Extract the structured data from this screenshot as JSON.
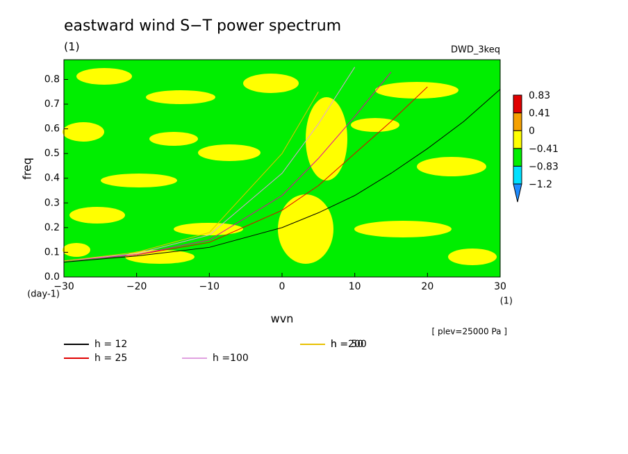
{
  "chart_data": {
    "type": "line",
    "title": "eastward wind S−T power spectrum",
    "subtitle": "(1)",
    "model_label": "DWD_3keq",
    "level_label": "[ plev=25000 Pa ]",
    "x_label": "wvn",
    "y_label": "freq",
    "x_unit": "(1)",
    "y_unit": "(day-1)",
    "xlim": [
      -30,
      30
    ],
    "xticks": [
      {
        "value": -30,
        "label": "−30"
      },
      {
        "value": -20,
        "label": "−20"
      },
      {
        "value": -10,
        "label": "−10"
      },
      0,
      10,
      20,
      30
    ],
    "ylim": [
      0,
      0.88
    ],
    "yticks": [
      {
        "value": 0,
        "label": "0.0"
      },
      0.1,
      0.2,
      0.3,
      0.4,
      0.5,
      0.6,
      0.7,
      0.8
    ],
    "x": [
      -30,
      -20,
      -10,
      0,
      5,
      10,
      15,
      20,
      25,
      30
    ],
    "series": [
      {
        "name": "h = 12",
        "color": "#000000",
        "values": [
          0.06,
          0.085,
          0.12,
          0.2,
          0.26,
          0.33,
          0.42,
          0.52,
          0.63,
          0.76
        ]
      },
      {
        "name": "h = 25",
        "color": "#e00000",
        "values": [
          0.065,
          0.09,
          0.14,
          0.27,
          0.37,
          0.5,
          0.63,
          0.77,
          null,
          null
        ]
      },
      {
        "name": "h = 50",
        "color": "#e000a0",
        "values": [
          0.065,
          0.09,
          0.15,
          0.33,
          0.48,
          0.65,
          0.83,
          null,
          null,
          null
        ]
      },
      {
        "name": "h =100",
        "color": "#e0a0e0",
        "values": [
          0.065,
          0.095,
          0.17,
          0.42,
          0.62,
          0.85,
          null,
          null,
          null,
          null
        ]
      },
      {
        "name": "h =200",
        "color": "#e8c000",
        "values": [
          0.065,
          0.1,
          0.18,
          0.5,
          0.75,
          null,
          null,
          null,
          null,
          null
        ]
      }
    ],
    "colorbar": {
      "levels": [
        {
          "value": -1.2,
          "label": "−1.2"
        },
        {
          "value": -0.83,
          "label": "−0.83"
        },
        {
          "value": -0.41,
          "label": "−0.41"
        },
        0,
        0.41,
        0.83
      ],
      "colors": [
        "#1e8cff",
        "#00e0ff",
        "#00ee00",
        "#ffff00",
        "#f5a000",
        "#e00000"
      ]
    }
  }
}
